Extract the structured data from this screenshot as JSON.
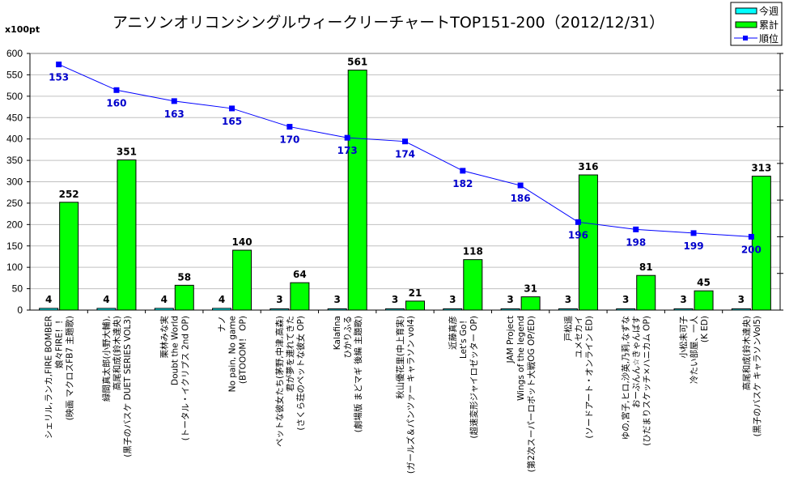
{
  "chart_data": {
    "type": "bar",
    "title": "アニソンオリコンシングルウィークリーチャートTOP151-200（2012/12/31）",
    "ylabel": "x100pt",
    "ylim": [
      0,
      600
    ],
    "yticks": [
      0,
      50,
      100,
      150,
      200,
      250,
      300,
      350,
      400,
      450,
      500,
      550,
      600
    ],
    "y2lim": [
      150,
      220
    ],
    "y2_inverted": true,
    "y2_step": 10,
    "grid": true,
    "legend_position": "top-right",
    "categories": [
      [
        "シェリル,ランカ,FIRE BOMBER",
        "娘々FIRE！！",
        "(映画 マクロスFB7 主題歌)"
      ],
      [
        "緑間真太郎(小野大輔),",
        "高尾和成(鈴木達央)",
        "(黒子のバスケ DUET SERIES VOL3)"
      ],
      [
        "栗林みな実",
        "Doubt the World",
        "(トータル・イクリプス 2nd OP)"
      ],
      [
        "ナノ",
        "No pain, No game",
        "(BTOOOM！ OP)"
      ],
      [
        "ペットな彼女たち(茅野,中津,高森)",
        "君が夢を連れてきた",
        "(さくら荘のペットな彼女 OP)"
      ],
      [
        "Kalafina",
        "ひかりふる",
        "(劇場版 まどマギ 後編 主題歌)"
      ],
      [
        "秋山優花里(中上育実)",
        "(ガールズ＆パンツァー キャラソン vol4)"
      ],
      [
        "近藤真彦",
        "Let's Go！",
        "(超速変形ジャイロゼッター OP)"
      ],
      [
        "JAM Project",
        "Wings of the legend",
        "(第2次スーパーロボット大戦OG OP/ED)"
      ],
      [
        "戸松遥",
        "ユメセカイ",
        "(ソードアート・オンライン ED)"
      ],
      [
        "ゆの,宮子,ヒロ,沙英,乃莉,なずな",
        "おーぷんん☆きゃんばす",
        "(ひだまりスケッチ×ハニカム OP)"
      ],
      [
        "小松未可子",
        "冷たい部屋、一人",
        "(K ED)"
      ],
      [
        "高尾和成(鈴木達央)",
        "(黒子のバスケ キャラソンVol5)"
      ]
    ],
    "series": [
      {
        "name": "今週",
        "type": "bar",
        "color": "#00ffff",
        "values": [
          4,
          4,
          4,
          4,
          3,
          3,
          3,
          3,
          3,
          3,
          3,
          3,
          3
        ]
      },
      {
        "name": "累計",
        "type": "bar",
        "color": "#00ff00",
        "values": [
          252,
          351,
          58,
          140,
          64,
          561,
          21,
          118,
          31,
          316,
          81,
          45,
          313
        ]
      },
      {
        "name": "順位",
        "type": "line",
        "axis": "secondary",
        "color": "#0000ff",
        "values": [
          153,
          160,
          163,
          165,
          170,
          173,
          174,
          182,
          186,
          196,
          198,
          199,
          200
        ]
      }
    ]
  },
  "colors": {
    "weekly": "#00ffff",
    "total": "#00ff00",
    "rank": "#0000ff",
    "rank_label": "#0000cc",
    "grid": "#c0c0c0"
  }
}
